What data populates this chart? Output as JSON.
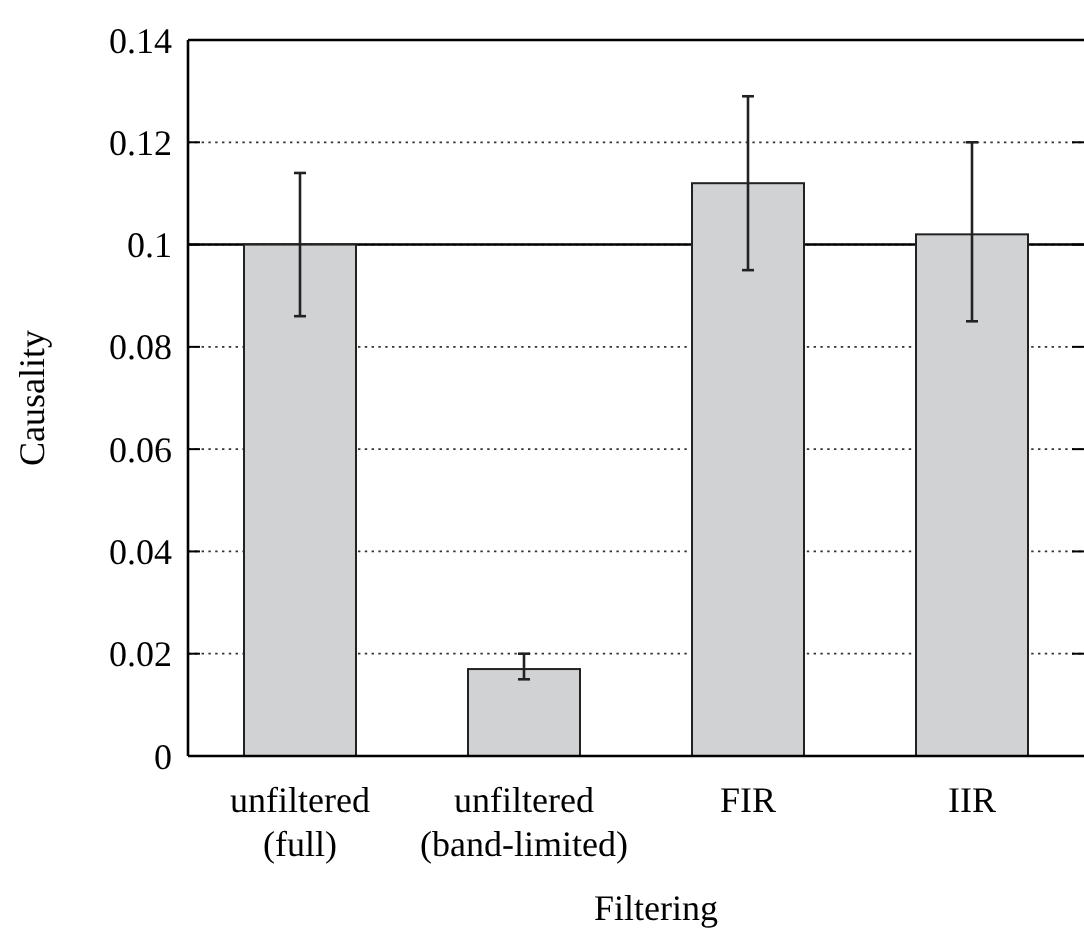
{
  "chart_data": {
    "type": "bar",
    "xlabel": "Filtering",
    "ylabel": "Causality",
    "categories": [
      "unfiltered\n(full)",
      "unfiltered\n(band-limited)",
      "FIR",
      "IIR"
    ],
    "values": [
      0.1,
      0.017,
      0.112,
      0.102
    ],
    "errors": [
      [
        0.086,
        0.114
      ],
      [
        0.015,
        0.02
      ],
      [
        0.095,
        0.129
      ],
      [
        0.085,
        0.12
      ]
    ],
    "color": "#d1d2d4",
    "ylim": [
      0,
      0.14
    ],
    "yticks": [
      0,
      0.02,
      0.04,
      0.06,
      0.08,
      0.1,
      0.12,
      0.14
    ],
    "grid": "y",
    "ref_lines": [
      {
        "axis": "y",
        "value": 0.1,
        "line_style": "solid",
        "color": "#000000"
      }
    ]
  }
}
